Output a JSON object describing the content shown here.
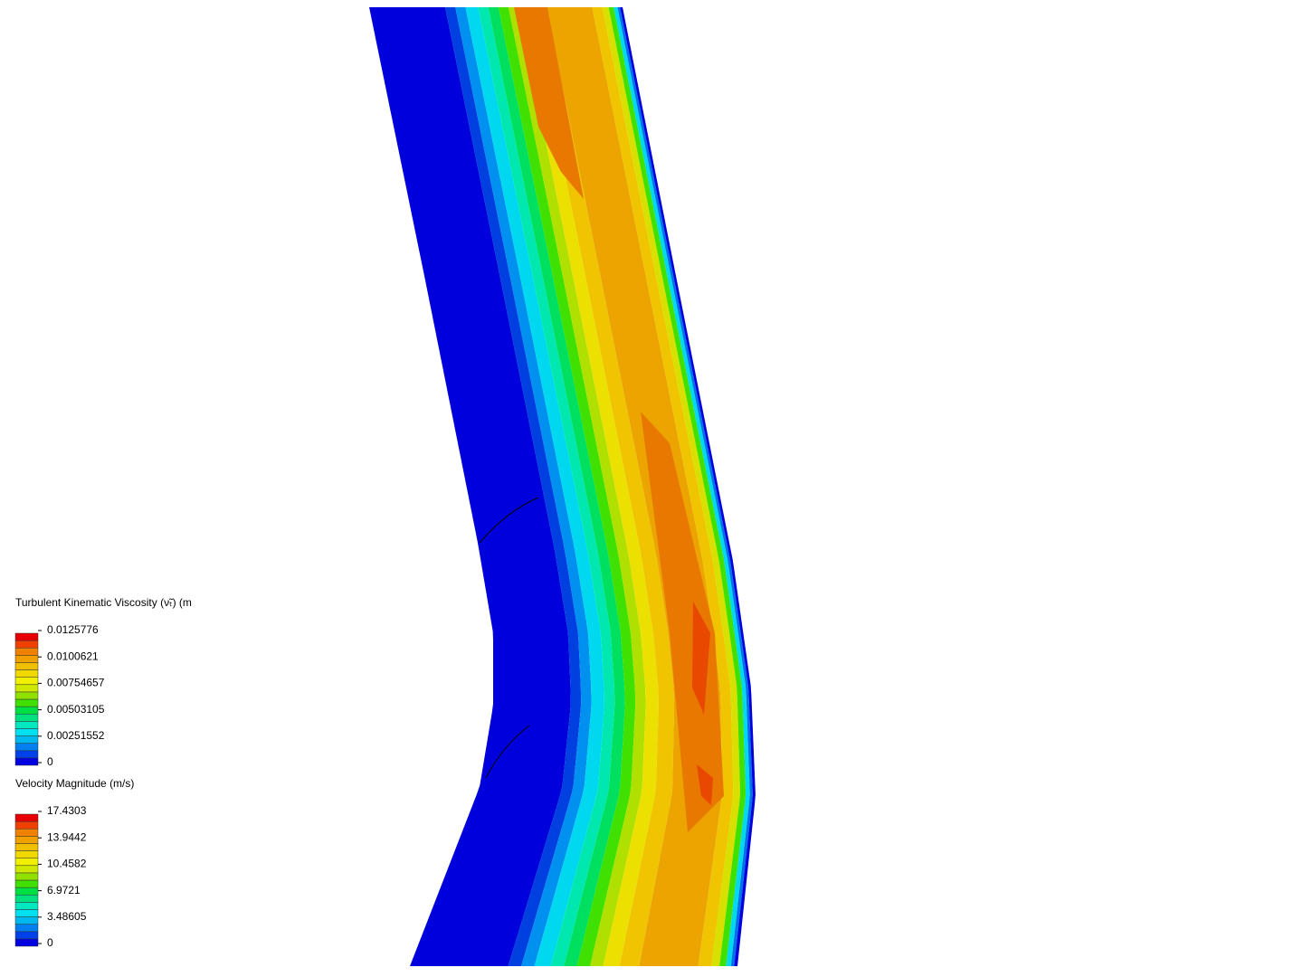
{
  "legends": [
    {
      "title": "Turbulent Kinematic Viscosity (ν̃ₜ) (m",
      "ticks": [
        "0.0125776",
        "0.0100621",
        "0.00754657",
        "0.00503105",
        "0.00251552",
        "0"
      ]
    },
    {
      "title": "Velocity Magnitude (m/s)",
      "ticks": [
        "17.4303",
        "13.9442",
        "10.4582",
        "6.9721",
        "3.48605",
        "0"
      ]
    }
  ]
}
